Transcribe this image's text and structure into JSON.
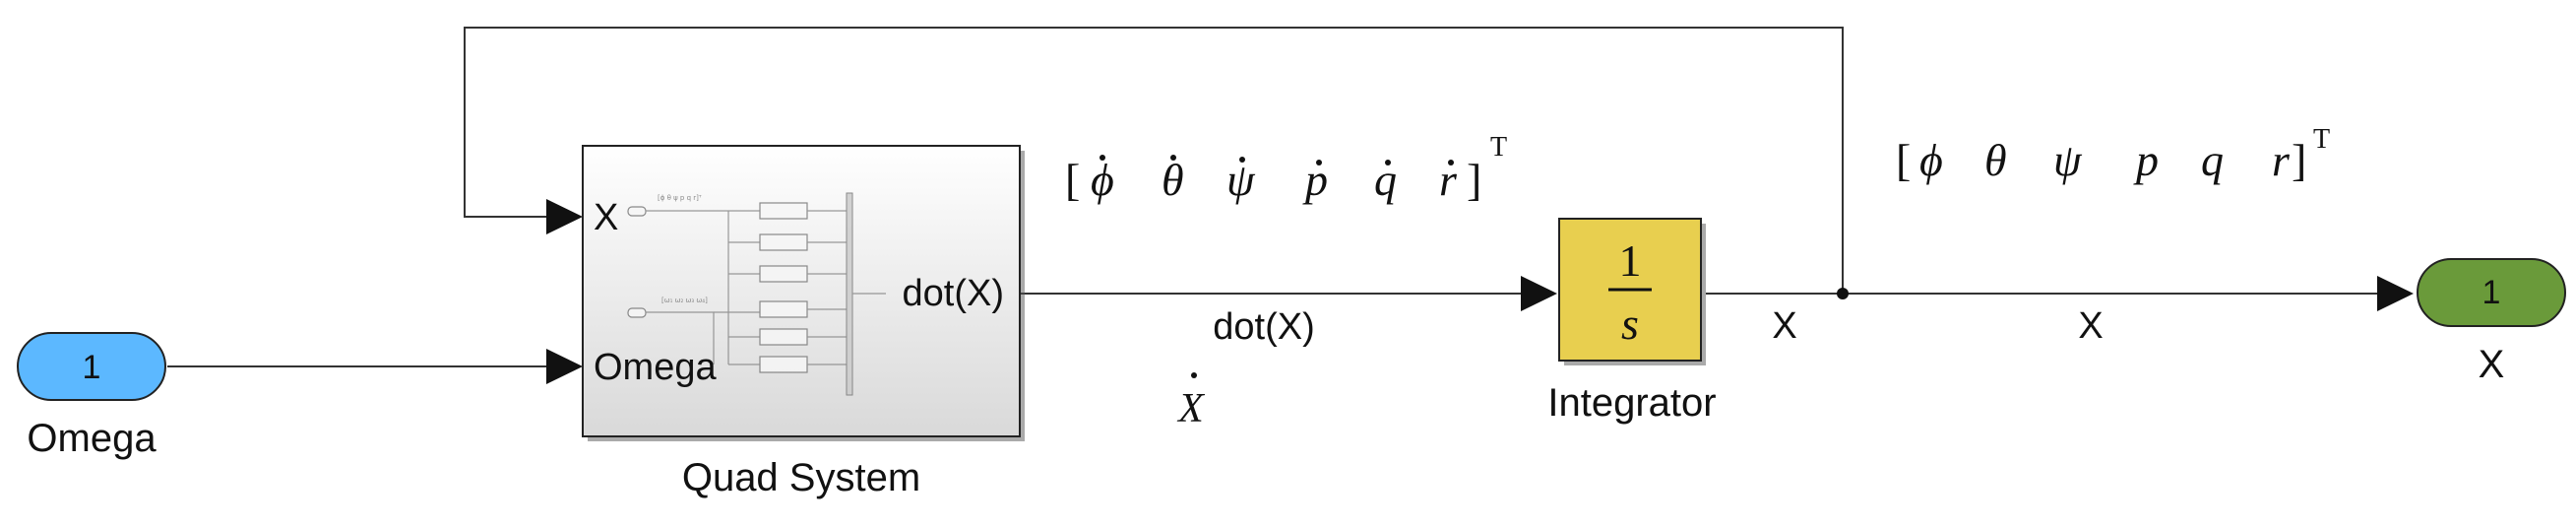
{
  "blocks": {
    "omega_inport": {
      "number": "1",
      "label": "Omega"
    },
    "quad_system": {
      "label": "Quad System",
      "port_x": "X",
      "port_omega": "Omega",
      "port_out": "dot(X)"
    },
    "integrator": {
      "numerator": "1",
      "denominator": "s",
      "label": "Integrator"
    },
    "x_outport": {
      "number": "1",
      "label": "X"
    }
  },
  "signals": {
    "dotx_name": "dot(X)",
    "dotx_math": "X",
    "x_after_integrator": "X",
    "x_to_outport": "X"
  },
  "annotations": {
    "state_derivative": {
      "open": "[",
      "symbols": [
        "ϕ",
        "θ",
        "ψ",
        "p",
        "q",
        "r"
      ],
      "close": "]",
      "superscript": "T"
    },
    "state": {
      "open": "[",
      "symbols": [
        "ϕ",
        "θ",
        "ψ",
        "p",
        "q",
        "r"
      ],
      "close": "]",
      "superscript": "T"
    }
  },
  "colors": {
    "inport_fill": "#5cb8ff",
    "outport_fill": "#6a9a3a",
    "integrator_fill": "#e8cf4f",
    "subsystem_top": "#ffffff",
    "subsystem_bottom": "#dcdcdc"
  }
}
